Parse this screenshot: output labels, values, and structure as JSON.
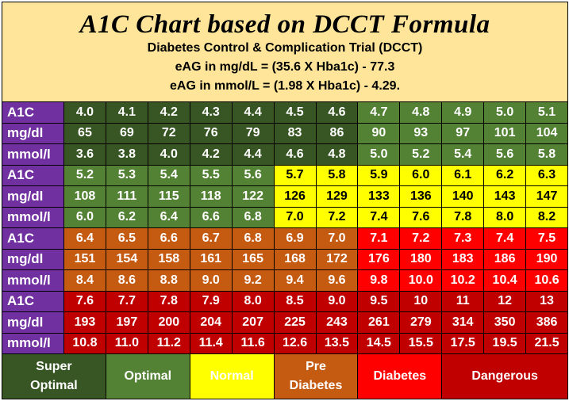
{
  "header": {
    "title": "A1C Chart based on DCCT Formula",
    "subtitle": "Diabetes Control & Complication Trial (DCCT)",
    "formula_mgdl": "eAG in mg/dL = (35.6 X Hba1c) - 77.3",
    "formula_mmol": "eAG in mmol/L = (1.98 X Hba1c) - 4.29."
  },
  "colors": {
    "super_optimal": "#375623",
    "optimal": "#548235",
    "normal": "#ffff00",
    "pre_diabetes": "#c55a11",
    "diabetes": "#ff0000",
    "dangerous": "#c00000",
    "label": "#7030a0",
    "header": "#fee59a"
  },
  "blocks": [
    {
      "a1c": [
        "4.0",
        "4.1",
        "4.2",
        "4.3",
        "4.4",
        "4.5",
        "4.6",
        "4.7",
        "4.8",
        "4.9",
        "5.0",
        "5.1"
      ],
      "mgdl": [
        "65",
        "69",
        "72",
        "76",
        "79",
        "83",
        "86",
        "90",
        "93",
        "97",
        "101",
        "104"
      ],
      "mmol": [
        "3.6",
        "3.8",
        "4.0",
        "4.2",
        "4.4",
        "4.6",
        "4.8",
        "5.0",
        "5.2",
        "5.4",
        "5.6",
        "5.8"
      ],
      "categories": [
        "super_optimal",
        "super_optimal",
        "super_optimal",
        "super_optimal",
        "super_optimal",
        "super_optimal",
        "super_optimal",
        "optimal",
        "optimal",
        "optimal",
        "optimal",
        "optimal"
      ]
    },
    {
      "a1c": [
        "5.2",
        "5.3",
        "5.4",
        "5.5",
        "5.6",
        "5.7",
        "5.8",
        "5.9",
        "6.0",
        "6.1",
        "6.2",
        "6.3"
      ],
      "mgdl": [
        "108",
        "111",
        "115",
        "118",
        "122",
        "126",
        "129",
        "133",
        "136",
        "140",
        "143",
        "147"
      ],
      "mmol": [
        "6.0",
        "6.2",
        "6.4",
        "6.6",
        "6.8",
        "7.0",
        "7.2",
        "7.4",
        "7.6",
        "7.8",
        "8.0",
        "8.2"
      ],
      "categories": [
        "optimal",
        "optimal",
        "optimal",
        "optimal",
        "optimal",
        "normal",
        "normal",
        "normal",
        "normal",
        "normal",
        "normal",
        "normal"
      ]
    },
    {
      "a1c": [
        "6.4",
        "6.5",
        "6.6",
        "6.7",
        "6.8",
        "6.9",
        "7.0",
        "7.1",
        "7.2",
        "7.3",
        "7.4",
        "7.5"
      ],
      "mgdl": [
        "151",
        "154",
        "158",
        "161",
        "165",
        "168",
        "172",
        "176",
        "180",
        "183",
        "186",
        "190"
      ],
      "mmol": [
        "8.4",
        "8.6",
        "8.8",
        "9.0",
        "9.2",
        "9.4",
        "9.6",
        "9.8",
        "10.0",
        "10.2",
        "10.4",
        "10.6"
      ],
      "categories": [
        "pre_diabetes",
        "pre_diabetes",
        "pre_diabetes",
        "pre_diabetes",
        "pre_diabetes",
        "pre_diabetes",
        "pre_diabetes",
        "diabetes",
        "diabetes",
        "diabetes",
        "diabetes",
        "diabetes"
      ]
    },
    {
      "a1c": [
        "7.6",
        "7.7",
        "7.8",
        "7.9",
        "8.0",
        "8.5",
        "9.0",
        "9.5",
        "10",
        "11",
        "12",
        "13"
      ],
      "mgdl": [
        "193",
        "197",
        "200",
        "204",
        "207",
        "225",
        "243",
        "261",
        "279",
        "314",
        "350",
        "386"
      ],
      "mmol": [
        "10.8",
        "11.0",
        "11.2",
        "11.4",
        "11.6",
        "12.6",
        "13.5",
        "14.5",
        "15.5",
        "17.5",
        "19.5",
        "21.5"
      ],
      "categories": [
        "dangerous",
        "dangerous",
        "dangerous",
        "dangerous",
        "dangerous",
        "dangerous",
        "dangerous",
        "dangerous",
        "dangerous",
        "dangerous",
        "dangerous",
        "dangerous"
      ]
    }
  ],
  "row_labels": {
    "a1c": "A1C",
    "mgdl": "mg/dl",
    "mmol": "mmol/l"
  },
  "legend": [
    {
      "key": "super_optimal",
      "line1": "Super",
      "line2": "Optimal"
    },
    {
      "key": "optimal",
      "line1": "Optimal",
      "line2": ""
    },
    {
      "key": "normal",
      "line1": "Normal",
      "line2": ""
    },
    {
      "key": "pre_diabetes",
      "line1": "Pre",
      "line2": "Diabetes"
    },
    {
      "key": "diabetes",
      "line1": "Diabetes",
      "line2": ""
    },
    {
      "key": "dangerous",
      "line1": "Dangerous",
      "line2": ""
    }
  ]
}
